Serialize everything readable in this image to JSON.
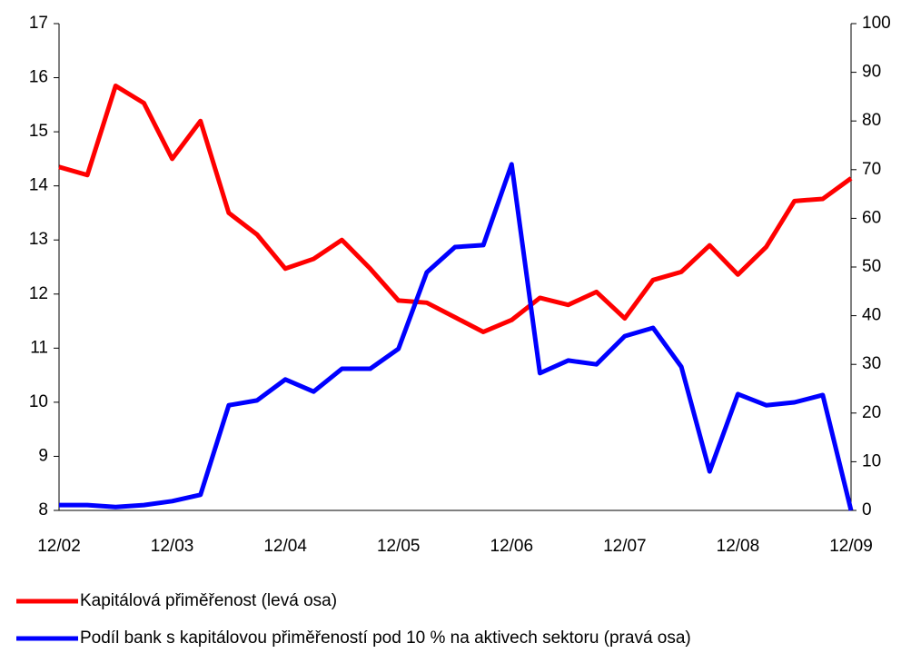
{
  "chart_data": {
    "type": "line",
    "categories": [
      "12/02",
      null,
      null,
      null,
      "12/03",
      null,
      null,
      null,
      "12/04",
      null,
      null,
      null,
      "12/05",
      null,
      null,
      null,
      "12/06",
      null,
      null,
      null,
      "12/07",
      null,
      null,
      null,
      "12/08",
      null,
      null,
      null,
      "12/09"
    ],
    "series": [
      {
        "name": "Kapitálová přiměřenost (levá osa)",
        "color": "#ff0000",
        "values": [
          14.35,
          14.2,
          15.85,
          15.53,
          14.5,
          15.2,
          13.5,
          13.1,
          12.47,
          12.65,
          13.0,
          12.47,
          11.88,
          11.84,
          11.57,
          11.3,
          11.52,
          11.93,
          11.8,
          12.04,
          11.55,
          12.26,
          12.41,
          12.9,
          12.36,
          12.87,
          13.72,
          13.76,
          14.14
        ]
      },
      {
        "name": "Podíl bank s kapitálovou přiměřeností pod 10 % na aktivech sektoru (pravá osa)",
        "color": "#0000ff",
        "axis": "y2",
        "values": [
          1.1,
          1.1,
          0.7,
          1.1,
          1.9,
          3.2,
          21.6,
          22.6,
          26.9,
          24.4,
          29.1,
          29.1,
          33.2,
          48.9,
          54.1,
          54.5,
          71.1,
          28.2,
          30.8,
          30.0,
          35.8,
          37.5,
          29.5,
          8.0,
          23.9,
          21.6,
          22.2,
          23.7,
          0
        ]
      }
    ],
    "ylim": [
      8,
      17
    ],
    "yticks": [
      8,
      9,
      10,
      11,
      12,
      13,
      14,
      15,
      16,
      17
    ],
    "y2lim": [
      0,
      100
    ],
    "y2ticks": [
      0,
      10,
      20,
      30,
      40,
      50,
      60,
      70,
      80,
      90,
      100
    ]
  }
}
